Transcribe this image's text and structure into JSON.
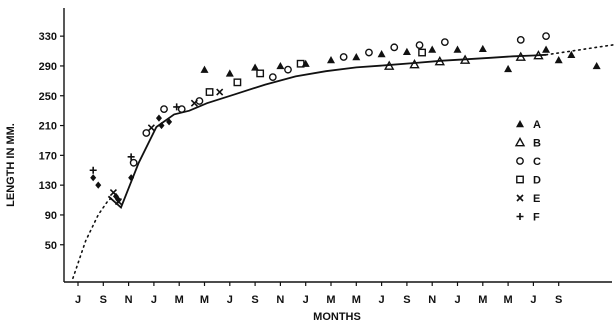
{
  "chart_data": {
    "type": "scatter",
    "title": "",
    "ylabel": "LENGTH IN MM.",
    "xlabel": "MONTHS",
    "x_categories": [
      "J",
      "S",
      "N",
      "J",
      "M",
      "M",
      "J",
      "S",
      "N",
      "J",
      "M",
      "M",
      "J",
      "S",
      "N",
      "J",
      "M",
      "M",
      "J",
      "S"
    ],
    "yticks": [
      50,
      90,
      130,
      170,
      210,
      250,
      290,
      330
    ],
    "ylim": [
      0,
      370
    ],
    "legend_position": "right",
    "series": [
      {
        "name": "A",
        "marker": "filled-triangle",
        "points": [
          [
            5.0,
            285
          ],
          [
            6.0,
            280
          ],
          [
            7.0,
            288
          ],
          [
            8.0,
            290
          ],
          [
            9.0,
            293
          ],
          [
            10.0,
            298
          ],
          [
            11.0,
            302
          ],
          [
            12.0,
            306
          ],
          [
            13.0,
            309
          ],
          [
            14.0,
            312
          ],
          [
            15.0,
            312
          ],
          [
            16.0,
            313
          ],
          [
            17.0,
            286
          ],
          [
            18.5,
            312
          ],
          [
            19.0,
            298
          ],
          [
            19.5,
            305
          ],
          [
            20.5,
            290
          ],
          [
            21.5,
            298
          ]
        ]
      },
      {
        "name": "B",
        "marker": "open-triangle",
        "points": [
          [
            12.3,
            290
          ],
          [
            13.3,
            292
          ],
          [
            14.3,
            296
          ],
          [
            15.3,
            298
          ],
          [
            17.5,
            302
          ],
          [
            18.2,
            304
          ]
        ]
      },
      {
        "name": "C",
        "marker": "open-circle",
        "points": [
          [
            2.2,
            160
          ],
          [
            2.7,
            200
          ],
          [
            3.4,
            232
          ],
          [
            4.1,
            232
          ],
          [
            4.8,
            243
          ],
          [
            7.7,
            275
          ],
          [
            8.3,
            285
          ],
          [
            10.5,
            302
          ],
          [
            11.5,
            308
          ],
          [
            12.5,
            315
          ],
          [
            13.5,
            318
          ],
          [
            14.5,
            322
          ],
          [
            17.5,
            325
          ],
          [
            18.5,
            330
          ]
        ]
      },
      {
        "name": "D",
        "marker": "open-square",
        "points": [
          [
            5.2,
            255
          ],
          [
            6.3,
            268
          ],
          [
            7.2,
            280
          ],
          [
            8.8,
            293
          ],
          [
            13.6,
            308
          ]
        ]
      },
      {
        "name": "E",
        "marker": "cross",
        "points": [
          [
            1.4,
            120
          ],
          [
            1.6,
            108
          ],
          [
            2.9,
            207
          ],
          [
            4.6,
            240
          ],
          [
            5.6,
            255
          ]
        ]
      },
      {
        "name": "F",
        "marker": "plus",
        "points": [
          [
            0.6,
            150
          ],
          [
            2.1,
            168
          ],
          [
            3.9,
            235
          ]
        ]
      }
    ],
    "extra_marks": [
      {
        "marker": "filled-diamond",
        "points": [
          [
            0.6,
            140
          ],
          [
            0.8,
            130
          ],
          [
            1.5,
            115
          ],
          [
            1.6,
            110
          ],
          [
            2.1,
            140
          ],
          [
            3.2,
            220
          ],
          [
            3.3,
            210
          ],
          [
            3.6,
            215
          ],
          [
            22.3,
            330
          ]
        ]
      }
    ],
    "fit_line": [
      [
        1.2,
        115
      ],
      [
        1.7,
        100
      ],
      [
        2.4,
        160
      ],
      [
        3.1,
        208
      ],
      [
        3.8,
        225
      ],
      [
        4.4,
        230
      ],
      [
        5.1,
        240
      ],
      [
        6.2,
        252
      ],
      [
        7.4,
        265
      ],
      [
        8.6,
        276
      ],
      [
        9.8,
        283
      ],
      [
        11.0,
        288
      ],
      [
        12.2,
        291
      ],
      [
        13.3,
        294
      ],
      [
        14.4,
        297
      ],
      [
        15.4,
        299
      ],
      [
        16.3,
        301
      ],
      [
        17.2,
        303
      ],
      [
        18.0,
        304
      ],
      [
        18.5,
        305
      ]
    ],
    "dotted_curve": [
      [
        -0.2,
        5
      ],
      [
        0.3,
        55
      ],
      [
        0.8,
        90
      ],
      [
        1.2,
        110
      ],
      [
        1.6,
        118
      ]
    ],
    "dotted_curve_tail": [
      [
        18.5,
        305
      ],
      [
        19.5,
        310
      ],
      [
        20.5,
        315
      ],
      [
        21.5,
        320
      ],
      [
        22.4,
        323
      ]
    ]
  }
}
